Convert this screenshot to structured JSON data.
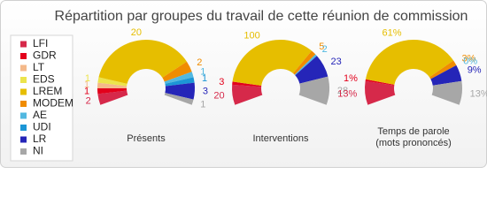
{
  "chart_data": {
    "type": "semi-donut",
    "title": "Répartition par groupes du travail de cette réunion de commission",
    "categories": [
      "LFI",
      "GDR",
      "LT",
      "EDS",
      "LREM",
      "MODEM",
      "AE",
      "UDI",
      "LR",
      "NI"
    ],
    "colors": [
      "#d6294a",
      "#e3001b",
      "#f4b98a",
      "#ece44c",
      "#e6be00",
      "#f08c00",
      "#52b8e0",
      "#1c96d6",
      "#2525b8",
      "#a7a7a7"
    ],
    "series": [
      {
        "name": "Présents",
        "values": [
          2,
          1,
          1,
          1,
          20,
          2,
          1,
          1,
          3,
          1
        ]
      },
      {
        "name": "Interventions",
        "values": [
          20,
          3,
          null,
          null,
          100,
          5,
          2,
          null,
          23,
          28
        ]
      },
      {
        "name": "Temps de parole",
        "subtitle": "(mots prononcés)",
        "values": [
          13,
          1,
          null,
          null,
          61,
          3,
          0,
          null,
          9,
          13
        ],
        "value_labels": [
          "13%",
          "1%",
          null,
          null,
          "61%",
          "3%",
          "0%",
          null,
          "9%",
          "13%"
        ]
      }
    ]
  }
}
